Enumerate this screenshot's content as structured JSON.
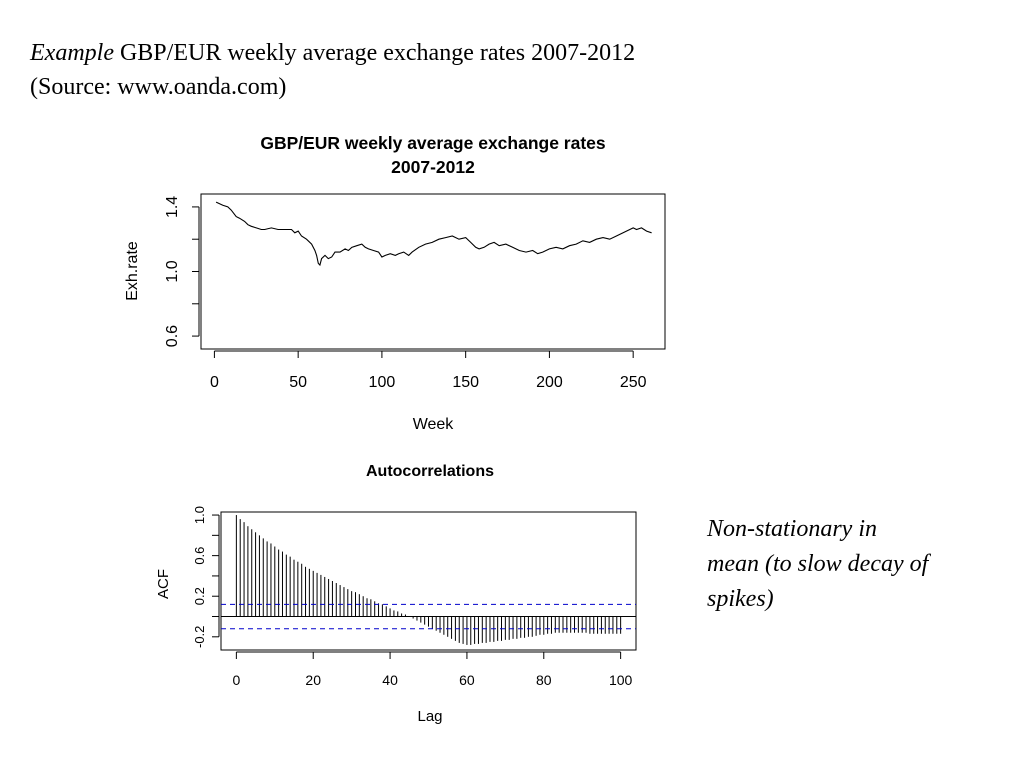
{
  "heading": {
    "line1_italic": "Example",
    "line1_rest": " GBP/EUR weekly average exchange rates 2007-2012",
    "line2": "(Source: www.oanda.com)"
  },
  "note": {
    "line1": "Non-stationary in",
    "line2": "mean (to slow decay of",
    "line3": "spikes)"
  },
  "chart_data": [
    {
      "type": "line",
      "title_line1": "GBP/EUR weekly average exchange rates",
      "title_line2": "2007-2012",
      "xlabel": "Week",
      "ylabel": "Exh.rate",
      "xlim": [
        -8,
        269
      ],
      "ylim": [
        0.52,
        1.48
      ],
      "xticks": [
        0,
        50,
        100,
        150,
        200,
        250
      ],
      "yticks": [
        0.6,
        1.0,
        1.4
      ],
      "series_color": "#000000",
      "x": [
        1,
        5,
        8,
        10,
        13,
        15,
        18,
        20,
        22,
        25,
        28,
        30,
        34,
        38,
        42,
        46,
        48,
        50,
        52,
        55,
        58,
        60,
        61,
        62,
        63,
        64,
        66,
        68,
        70,
        72,
        75,
        78,
        80,
        82,
        85,
        88,
        90,
        92,
        95,
        98,
        100,
        102,
        105,
        108,
        110,
        113,
        116,
        118,
        122,
        126,
        130,
        134,
        138,
        142,
        146,
        150,
        153,
        156,
        158,
        161,
        164,
        167,
        170,
        174,
        178,
        182,
        186,
        190,
        193,
        196,
        200,
        204,
        208,
        212,
        216,
        220,
        224,
        228,
        232,
        236,
        240,
        244,
        248,
        250,
        252,
        255,
        258,
        261
      ],
      "y": [
        1.43,
        1.41,
        1.4,
        1.38,
        1.34,
        1.33,
        1.31,
        1.29,
        1.28,
        1.27,
        1.26,
        1.26,
        1.27,
        1.26,
        1.26,
        1.26,
        1.24,
        1.25,
        1.22,
        1.2,
        1.17,
        1.13,
        1.1,
        1.05,
        1.04,
        1.08,
        1.1,
        1.08,
        1.09,
        1.12,
        1.12,
        1.14,
        1.13,
        1.15,
        1.16,
        1.17,
        1.15,
        1.14,
        1.13,
        1.12,
        1.09,
        1.1,
        1.11,
        1.1,
        1.11,
        1.12,
        1.1,
        1.12,
        1.15,
        1.17,
        1.18,
        1.2,
        1.21,
        1.22,
        1.2,
        1.21,
        1.18,
        1.15,
        1.14,
        1.15,
        1.17,
        1.18,
        1.16,
        1.17,
        1.15,
        1.13,
        1.12,
        1.13,
        1.11,
        1.12,
        1.14,
        1.15,
        1.14,
        1.16,
        1.17,
        1.19,
        1.18,
        1.2,
        1.21,
        1.2,
        1.22,
        1.24,
        1.26,
        1.27,
        1.26,
        1.27,
        1.25,
        1.24
      ]
    },
    {
      "type": "bar",
      "title": "Autocorrelations",
      "xlabel": "Lag",
      "ylabel": "ACF",
      "xlim": [
        -4,
        104
      ],
      "ylim": [
        -0.33,
        1.03
      ],
      "xticks": [
        0,
        20,
        40,
        60,
        80,
        100
      ],
      "yticks": [
        -0.2,
        0.2,
        0.6,
        1.0
      ],
      "confidence_band": 0.12,
      "confidence_color": "#0000cc",
      "lags": [
        0,
        1,
        2,
        3,
        4,
        5,
        6,
        7,
        8,
        9,
        10,
        11,
        12,
        13,
        14,
        15,
        16,
        17,
        18,
        19,
        20,
        21,
        22,
        23,
        24,
        25,
        26,
        27,
        28,
        29,
        30,
        31,
        32,
        33,
        34,
        35,
        36,
        37,
        38,
        39,
        40,
        41,
        42,
        43,
        44,
        45,
        46,
        47,
        48,
        49,
        50,
        51,
        52,
        53,
        54,
        55,
        56,
        57,
        58,
        59,
        60,
        61,
        62,
        63,
        64,
        65,
        66,
        67,
        68,
        69,
        70,
        71,
        72,
        73,
        74,
        75,
        76,
        77,
        78,
        79,
        80,
        81,
        82,
        83,
        84,
        85,
        86,
        87,
        88,
        89,
        90,
        91,
        92,
        93,
        94,
        95,
        96,
        97,
        98,
        99,
        100
      ],
      "acf": [
        1.0,
        0.96,
        0.93,
        0.89,
        0.86,
        0.83,
        0.8,
        0.77,
        0.74,
        0.72,
        0.69,
        0.66,
        0.64,
        0.61,
        0.59,
        0.56,
        0.54,
        0.52,
        0.49,
        0.47,
        0.45,
        0.43,
        0.41,
        0.39,
        0.37,
        0.35,
        0.33,
        0.31,
        0.29,
        0.27,
        0.25,
        0.24,
        0.22,
        0.2,
        0.18,
        0.17,
        0.15,
        0.13,
        0.12,
        0.1,
        0.08,
        0.06,
        0.05,
        0.03,
        0.02,
        0.0,
        -0.02,
        -0.04,
        -0.06,
        -0.08,
        -0.1,
        -0.12,
        -0.14,
        -0.16,
        -0.18,
        -0.2,
        -0.22,
        -0.24,
        -0.26,
        -0.27,
        -0.28,
        -0.28,
        -0.27,
        -0.27,
        -0.26,
        -0.26,
        -0.25,
        -0.25,
        -0.24,
        -0.24,
        -0.23,
        -0.23,
        -0.22,
        -0.22,
        -0.21,
        -0.21,
        -0.2,
        -0.2,
        -0.19,
        -0.18,
        -0.18,
        -0.17,
        -0.17,
        -0.16,
        -0.16,
        -0.16,
        -0.16,
        -0.16,
        -0.16,
        -0.16,
        -0.16,
        -0.16,
        -0.17,
        -0.17,
        -0.17,
        -0.17,
        -0.17,
        -0.17,
        -0.17,
        -0.17,
        -0.17
      ]
    }
  ]
}
